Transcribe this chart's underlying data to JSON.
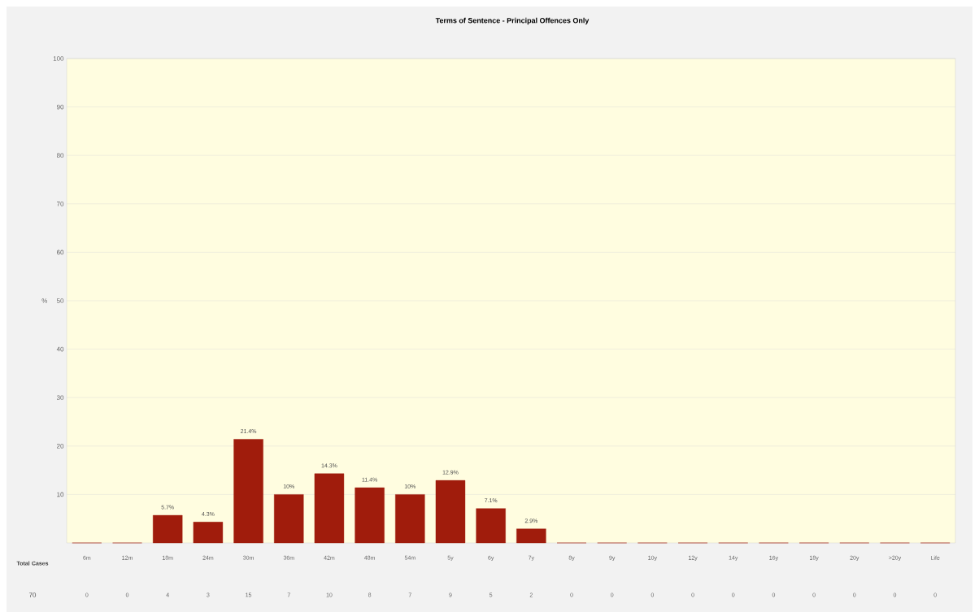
{
  "chart_data": {
    "type": "bar",
    "title": "Terms of Sentence - Principal Offences Only",
    "ylabel": "%",
    "categories": [
      "6m",
      "12m",
      "18m",
      "24m",
      "30m",
      "36m",
      "42m",
      "48m",
      "54m",
      "5y",
      "6y",
      "7y",
      "8y",
      "9y",
      "10y",
      "12y",
      "14y",
      "16y",
      "18y",
      "20y",
      ">20y",
      "Life"
    ],
    "values": [
      0,
      0,
      5.7,
      4.3,
      21.4,
      10,
      14.3,
      11.4,
      10,
      12.9,
      7.1,
      2.9,
      0,
      0,
      0,
      0,
      0,
      0,
      0,
      0,
      0,
      0
    ],
    "value_labels": [
      null,
      null,
      "5.7%",
      "4.3%",
      "21.4%",
      "10%",
      "14.3%",
      "11.4%",
      "10%",
      "12.9%",
      "7.1%",
      "2.9%",
      null,
      null,
      null,
      null,
      null,
      null,
      null,
      null,
      null,
      null
    ],
    "color": "#a01c0c",
    "ylim": [
      0,
      100
    ],
    "yticks": [
      10,
      20,
      30,
      40,
      50,
      60,
      70,
      80,
      90,
      100
    ],
    "grid": "y",
    "annotations": [
      "Total Cases",
      "70",
      "0",
      "0",
      "4",
      "3",
      "15",
      "7",
      "10",
      "8",
      "7",
      "9",
      "5",
      "2",
      "0",
      "0",
      "0",
      "0",
      "0",
      "0",
      "0",
      "0",
      "0",
      "0"
    ]
  }
}
